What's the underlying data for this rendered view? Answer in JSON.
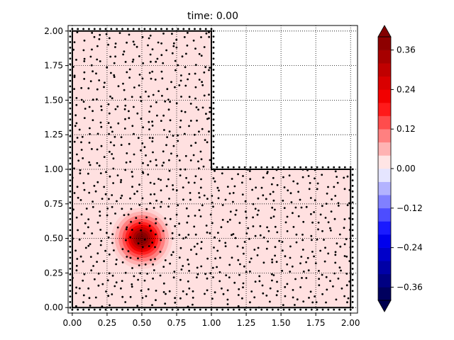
{
  "chart_data": {
    "type": "heatmap",
    "title": "time: 0.00",
    "xlabel": "",
    "ylabel": "",
    "xlim": [
      -0.03,
      2.05
    ],
    "ylim": [
      -0.04,
      2.04
    ],
    "xticks": [
      "0.00",
      "0.25",
      "0.50",
      "0.75",
      "1.00",
      "1.25",
      "1.50",
      "1.75",
      "2.00"
    ],
    "yticks": [
      "0.00",
      "0.25",
      "0.50",
      "0.75",
      "1.00",
      "1.25",
      "1.50",
      "1.75",
      "2.00"
    ],
    "grid": true,
    "domain_outline": [
      [
        0,
        0
      ],
      [
        2,
        0
      ],
      [
        2,
        1
      ],
      [
        1,
        1
      ],
      [
        1,
        2
      ],
      [
        0,
        2
      ]
    ],
    "background_value": 0.02,
    "pulse": {
      "center": [
        0.5,
        0.5
      ],
      "peak_value": 0.4,
      "radius": 0.22
    },
    "mesh_points": "scattered nodes throughout domain",
    "colorbar": {
      "colormap": "seismic",
      "vmin": -0.4,
      "vmax": 0.4,
      "levels": 20,
      "ticks": [
        "0.36",
        "0.24",
        "0.12",
        "0.00",
        "−0.12",
        "−0.24",
        "−0.36"
      ],
      "extend": "both"
    }
  }
}
